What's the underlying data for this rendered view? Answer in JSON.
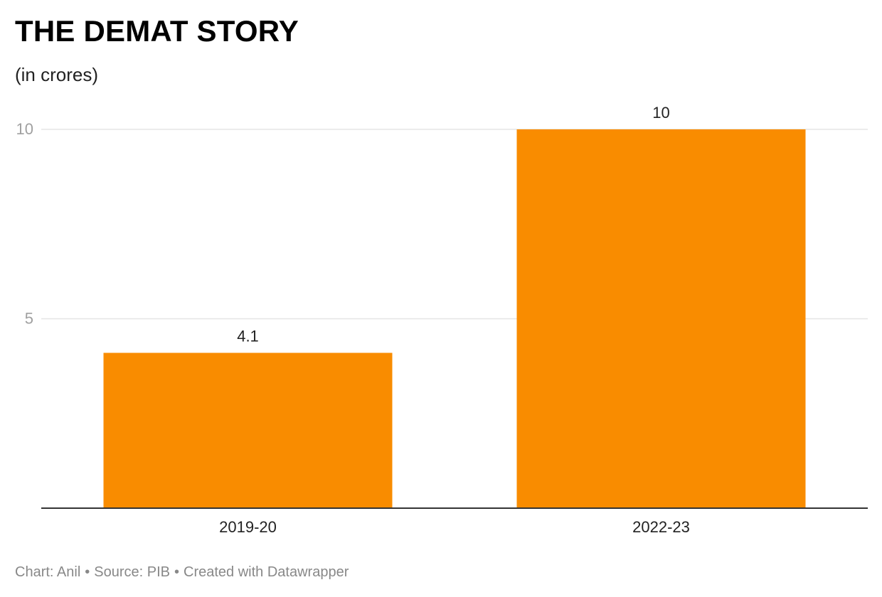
{
  "header": {
    "title": "THE DEMAT STORY",
    "subtitle": "(in crores)"
  },
  "chart_data": {
    "type": "bar",
    "title": "THE DEMAT STORY",
    "subtitle": "(in crores)",
    "categories": [
      "2019-20",
      "2022-23"
    ],
    "values": [
      4.1,
      10
    ],
    "value_labels": [
      "4.1",
      "10"
    ],
    "xlabel": "",
    "ylabel": "",
    "ylim": [
      0,
      10
    ],
    "yticks": [
      5,
      10
    ],
    "ytick_labels": [
      "5",
      "10"
    ],
    "grid": true,
    "legend": "none",
    "colors": {
      "bar": "#f98c00",
      "gridline": "#e5e5e5",
      "baseline": "#333333",
      "tick_label": "#a0a0a0",
      "value_label": "#222222",
      "category_label": "#222222"
    }
  },
  "footer": {
    "chart_credit": "Chart: Anil",
    "source": "Source: PIB",
    "created_with": "Created with Datawrapper",
    "separator": "•"
  }
}
